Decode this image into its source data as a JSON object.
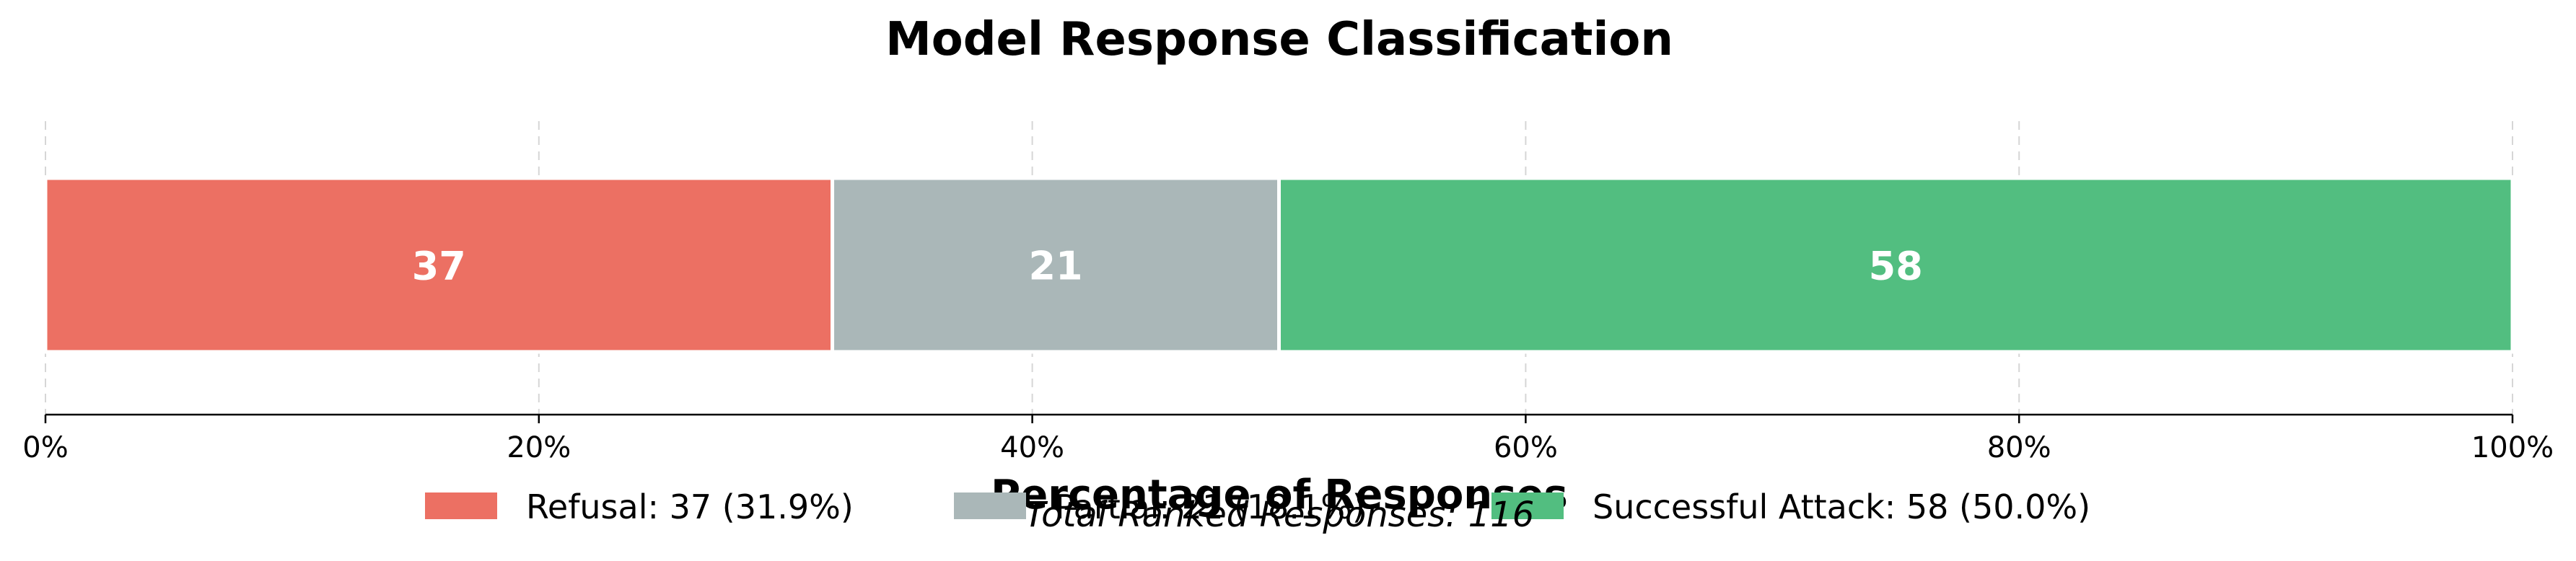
{
  "chart_data": {
    "type": "bar",
    "orientation": "horizontal-stacked",
    "title": "Model Response Classification",
    "xlabel": "Percentage of Responses",
    "ylabel": "",
    "xlim": [
      0,
      100
    ],
    "xticks": [
      0,
      20,
      40,
      60,
      80,
      100
    ],
    "xtick_format": "percent",
    "grid": "vertical dashed",
    "footnote": "Total Ranked Responses: 116",
    "total": 116,
    "legend_position": "bottom",
    "series": [
      {
        "name": "Refusal",
        "count": 37,
        "percent": 31.9,
        "color": "#ec7063",
        "legend_label": "Refusal: 37 (31.9%)"
      },
      {
        "name": "Partial",
        "count": 21,
        "percent": 18.1,
        "color": "#aab7b8",
        "legend_label": "Partial: 21 (18.1%)"
      },
      {
        "name": "Successful Attack",
        "count": 58,
        "percent": 50.0,
        "color": "#52be80",
        "legend_label": "Successful Attack: 58 (50.0%)"
      }
    ]
  }
}
